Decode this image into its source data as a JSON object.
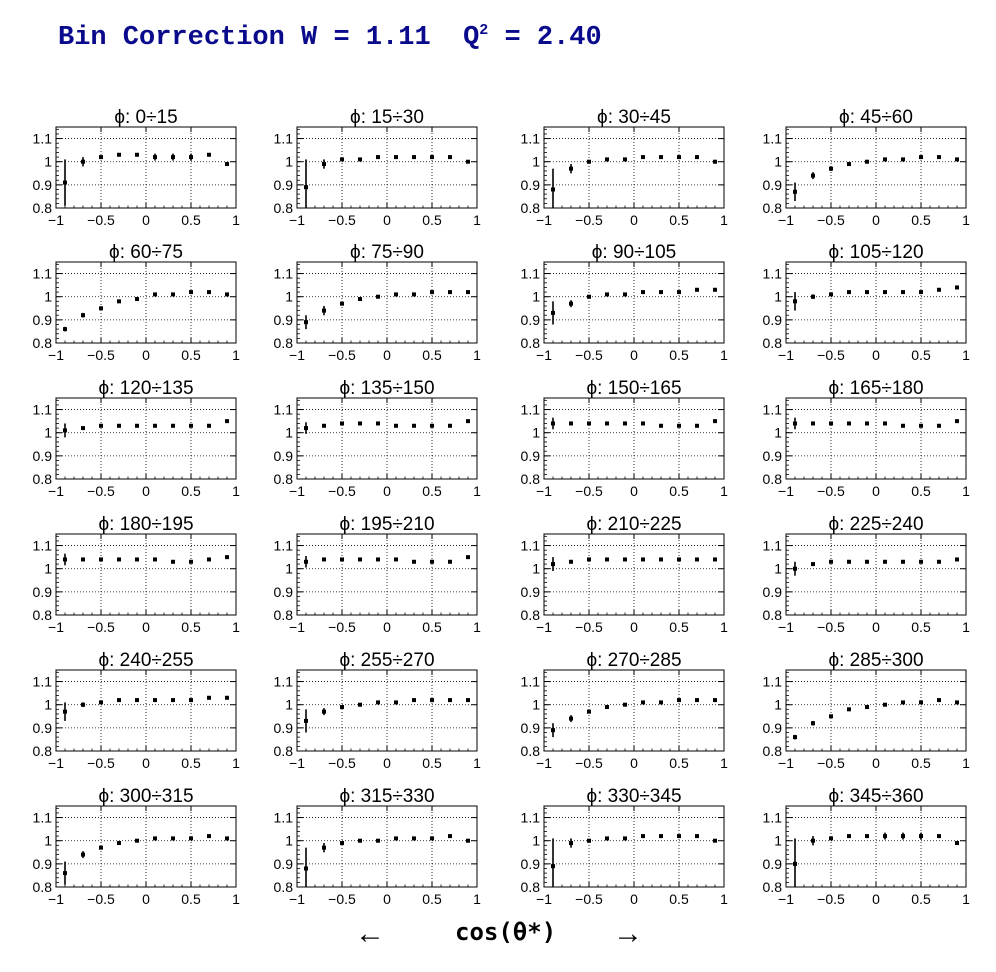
{
  "title": {
    "prefix": "Bin Correction W = 1.11  Q",
    "sup": "2",
    "suffix": " = 2.40"
  },
  "xaxis": {
    "left_arrow": "←",
    "label": "cos(θ*)",
    "right_arrow": "→"
  },
  "chart_data": {
    "type": "scatter",
    "layout": "small-multiples 6x4",
    "x": [
      -0.9,
      -0.7,
      -0.5,
      -0.3,
      -0.1,
      0.1,
      0.3,
      0.5,
      0.7,
      0.9
    ],
    "xlim": [
      -1,
      1
    ],
    "ylim": [
      0.8,
      1.15
    ],
    "xticks": [
      "−1",
      "−0.5",
      "0",
      "0.5",
      "1"
    ],
    "xtick_values": [
      -1,
      -0.5,
      0,
      0.5,
      1
    ],
    "yticks": [
      "0.8",
      "0.9",
      "1",
      "1.1"
    ],
    "ytick_values": [
      0.8,
      0.9,
      1.0,
      1.1
    ],
    "grid": true,
    "panels": [
      {
        "title": "ϕ:  0÷15",
        "y": [
          0.91,
          1.0,
          1.02,
          1.03,
          1.03,
          1.02,
          1.02,
          1.02,
          1.03,
          0.99
        ],
        "err": [
          0.1,
          0.02,
          0.005,
          0.005,
          0.005,
          0.015,
          0.015,
          0.015,
          0.005,
          0.005
        ]
      },
      {
        "title": "ϕ:  15÷30",
        "y": [
          0.89,
          0.99,
          1.01,
          1.01,
          1.02,
          1.02,
          1.02,
          1.02,
          1.02,
          1.0
        ],
        "err": [
          0.12,
          0.02,
          0.005,
          0.005,
          0.005,
          0.005,
          0.005,
          0.005,
          0.005,
          0.005
        ]
      },
      {
        "title": "ϕ:  30÷45",
        "y": [
          0.88,
          0.97,
          1.0,
          1.01,
          1.01,
          1.02,
          1.02,
          1.02,
          1.02,
          1.0
        ],
        "err": [
          0.09,
          0.02,
          0.005,
          0.005,
          0.005,
          0.005,
          0.005,
          0.005,
          0.005,
          0.005
        ]
      },
      {
        "title": "ϕ:  45÷60",
        "y": [
          0.87,
          0.94,
          0.97,
          0.99,
          1.0,
          1.01,
          1.01,
          1.02,
          1.02,
          1.01
        ],
        "err": [
          0.04,
          0.015,
          0.01,
          0.005,
          0.005,
          0.005,
          0.005,
          0.005,
          0.005,
          0.005
        ]
      },
      {
        "title": "ϕ:  60÷75",
        "y": [
          0.86,
          0.92,
          0.95,
          0.98,
          0.99,
          1.01,
          1.01,
          1.02,
          1.02,
          1.01
        ],
        "err": [
          0.01,
          0.01,
          0.005,
          0.005,
          0.005,
          0.005,
          0.005,
          0.005,
          0.005,
          0.005
        ]
      },
      {
        "title": "ϕ:  75÷90",
        "y": [
          0.89,
          0.94,
          0.97,
          0.99,
          1.0,
          1.01,
          1.01,
          1.02,
          1.02,
          1.02
        ],
        "err": [
          0.03,
          0.02,
          0.005,
          0.005,
          0.005,
          0.005,
          0.005,
          0.005,
          0.005,
          0.005
        ]
      },
      {
        "title": "ϕ:  90÷105",
        "y": [
          0.93,
          0.97,
          1.0,
          1.01,
          1.01,
          1.02,
          1.02,
          1.02,
          1.03,
          1.03
        ],
        "err": [
          0.05,
          0.015,
          0.005,
          0.005,
          0.005,
          0.005,
          0.005,
          0.005,
          0.005,
          0.005
        ]
      },
      {
        "title": "ϕ: 105÷120",
        "y": [
          0.98,
          1.0,
          1.01,
          1.02,
          1.02,
          1.02,
          1.02,
          1.02,
          1.03,
          1.04
        ],
        "err": [
          0.04,
          0.01,
          0.005,
          0.005,
          0.005,
          0.005,
          0.005,
          0.005,
          0.005,
          0.005
        ]
      },
      {
        "title": "ϕ: 120÷135",
        "y": [
          1.01,
          1.02,
          1.03,
          1.03,
          1.03,
          1.03,
          1.03,
          1.03,
          1.03,
          1.05
        ],
        "err": [
          0.03,
          0.005,
          0.005,
          0.005,
          0.005,
          0.005,
          0.005,
          0.005,
          0.005,
          0.005
        ]
      },
      {
        "title": "ϕ: 135÷150",
        "y": [
          1.02,
          1.03,
          1.04,
          1.04,
          1.04,
          1.03,
          1.03,
          1.03,
          1.03,
          1.05
        ],
        "err": [
          0.025,
          0.005,
          0.005,
          0.005,
          0.005,
          0.005,
          0.005,
          0.005,
          0.005,
          0.005
        ]
      },
      {
        "title": "ϕ: 150÷165",
        "y": [
          1.04,
          1.04,
          1.04,
          1.04,
          1.04,
          1.04,
          1.03,
          1.03,
          1.03,
          1.05
        ],
        "err": [
          0.025,
          0.005,
          0.005,
          0.005,
          0.005,
          0.005,
          0.005,
          0.005,
          0.005,
          0.005
        ]
      },
      {
        "title": "ϕ: 165÷180",
        "y": [
          1.04,
          1.04,
          1.04,
          1.04,
          1.04,
          1.04,
          1.03,
          1.03,
          1.03,
          1.05
        ],
        "err": [
          0.025,
          0.005,
          0.005,
          0.005,
          0.005,
          0.005,
          0.005,
          0.005,
          0.005,
          0.005
        ]
      },
      {
        "title": "ϕ: 180÷195",
        "y": [
          1.04,
          1.04,
          1.04,
          1.04,
          1.04,
          1.04,
          1.03,
          1.03,
          1.04,
          1.05
        ],
        "err": [
          0.025,
          0.005,
          0.005,
          0.005,
          0.005,
          0.005,
          0.005,
          0.005,
          0.005,
          0.005
        ]
      },
      {
        "title": "ϕ: 195÷210",
        "y": [
          1.03,
          1.04,
          1.04,
          1.04,
          1.04,
          1.04,
          1.03,
          1.03,
          1.03,
          1.05
        ],
        "err": [
          0.025,
          0.005,
          0.005,
          0.005,
          0.005,
          0.005,
          0.005,
          0.005,
          0.005,
          0.005
        ]
      },
      {
        "title": "ϕ: 210÷225",
        "y": [
          1.02,
          1.03,
          1.04,
          1.04,
          1.04,
          1.04,
          1.04,
          1.04,
          1.04,
          1.04
        ],
        "err": [
          0.03,
          0.005,
          0.005,
          0.005,
          0.005,
          0.005,
          0.005,
          0.005,
          0.005,
          0.005
        ]
      },
      {
        "title": "ϕ: 225÷240",
        "y": [
          1.0,
          1.02,
          1.03,
          1.03,
          1.03,
          1.03,
          1.03,
          1.03,
          1.03,
          1.04
        ],
        "err": [
          0.03,
          0.005,
          0.005,
          0.005,
          0.005,
          0.005,
          0.005,
          0.005,
          0.005,
          0.005
        ]
      },
      {
        "title": "ϕ: 240÷255",
        "y": [
          0.97,
          1.0,
          1.01,
          1.02,
          1.02,
          1.02,
          1.02,
          1.02,
          1.03,
          1.03
        ],
        "err": [
          0.04,
          0.01,
          0.005,
          0.005,
          0.005,
          0.005,
          0.005,
          0.005,
          0.005,
          0.005
        ]
      },
      {
        "title": "ϕ: 255÷270",
        "y": [
          0.93,
          0.97,
          0.99,
          1.0,
          1.01,
          1.01,
          1.02,
          1.02,
          1.02,
          1.02
        ],
        "err": [
          0.05,
          0.015,
          0.005,
          0.005,
          0.005,
          0.005,
          0.005,
          0.005,
          0.005,
          0.005
        ]
      },
      {
        "title": "ϕ: 270÷285",
        "y": [
          0.89,
          0.94,
          0.97,
          0.99,
          1.0,
          1.01,
          1.01,
          1.02,
          1.02,
          1.02
        ],
        "err": [
          0.03,
          0.015,
          0.005,
          0.005,
          0.005,
          0.005,
          0.005,
          0.005,
          0.005,
          0.005
        ]
      },
      {
        "title": "ϕ: 285÷300",
        "y": [
          0.86,
          0.92,
          0.95,
          0.98,
          0.99,
          1.0,
          1.01,
          1.01,
          1.02,
          1.01
        ],
        "err": [
          0.01,
          0.01,
          0.005,
          0.005,
          0.005,
          0.005,
          0.005,
          0.005,
          0.005,
          0.005
        ]
      },
      {
        "title": "ϕ: 300÷315",
        "y": [
          0.86,
          0.94,
          0.97,
          0.99,
          1.0,
          1.01,
          1.01,
          1.01,
          1.02,
          1.01
        ],
        "err": [
          0.05,
          0.015,
          0.005,
          0.005,
          0.005,
          0.005,
          0.005,
          0.005,
          0.005,
          0.005
        ]
      },
      {
        "title": "ϕ: 315÷330",
        "y": [
          0.88,
          0.97,
          0.99,
          1.0,
          1.0,
          1.01,
          1.01,
          1.01,
          1.02,
          1.0
        ],
        "err": [
          0.09,
          0.02,
          0.005,
          0.005,
          0.005,
          0.005,
          0.005,
          0.005,
          0.005,
          0.005
        ]
      },
      {
        "title": "ϕ: 330÷345",
        "y": [
          0.89,
          0.99,
          1.0,
          1.01,
          1.01,
          1.02,
          1.02,
          1.02,
          1.02,
          1.0
        ],
        "err": [
          0.12,
          0.02,
          0.005,
          0.005,
          0.005,
          0.005,
          0.005,
          0.005,
          0.005,
          0.005
        ]
      },
      {
        "title": "ϕ: 345÷360",
        "y": [
          0.9,
          1.0,
          1.01,
          1.02,
          1.02,
          1.02,
          1.02,
          1.02,
          1.02,
          0.99
        ],
        "err": [
          0.11,
          0.02,
          0.005,
          0.005,
          0.005,
          0.015,
          0.015,
          0.015,
          0.005,
          0.005
        ]
      }
    ]
  }
}
